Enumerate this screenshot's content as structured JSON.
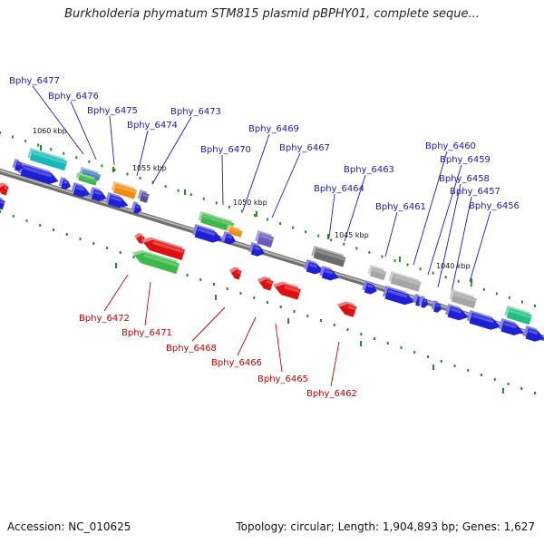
{
  "title": "Burkholderia phymatum STM815 plasmid pBPHY01, complete seque...",
  "footer": {
    "accession": "Accession: NC_010625",
    "summary": "Topology: circular; Length: 1,904,893 bp; Genes: 1,627"
  },
  "colors": {
    "backbone": "#8c8c8c",
    "forward_strand": "#1f1fd6",
    "reverse_strand": "#e01010",
    "label_forward": "#1a1aa8",
    "label_reverse": "#c40000",
    "tick": "#2a8a2a"
  },
  "scale_labels": [
    {
      "text": "1060 kbp"
    },
    {
      "text": "1055 kbp"
    },
    {
      "text": "1050 kbp"
    },
    {
      "text": "1045 kbp"
    },
    {
      "text": "1040 kbp"
    }
  ],
  "gene_labels_top": [
    "Bphy_6477",
    "Bphy_6476",
    "Bphy_6475",
    "Bphy_6474",
    "Bphy_6473",
    "Bphy_6470",
    "Bphy_6469",
    "Bphy_6467",
    "Bphy_6464",
    "Bphy_6463",
    "Bphy_6461",
    "Bphy_6460",
    "Bphy_6459",
    "Bphy_6458",
    "Bphy_6457",
    "Bphy_6456"
  ],
  "gene_labels_bottom": [
    "Bphy_6472",
    "Bphy_6471",
    "Bphy_6468",
    "Bphy_6466",
    "Bphy_6465",
    "Bphy_6462"
  ]
}
